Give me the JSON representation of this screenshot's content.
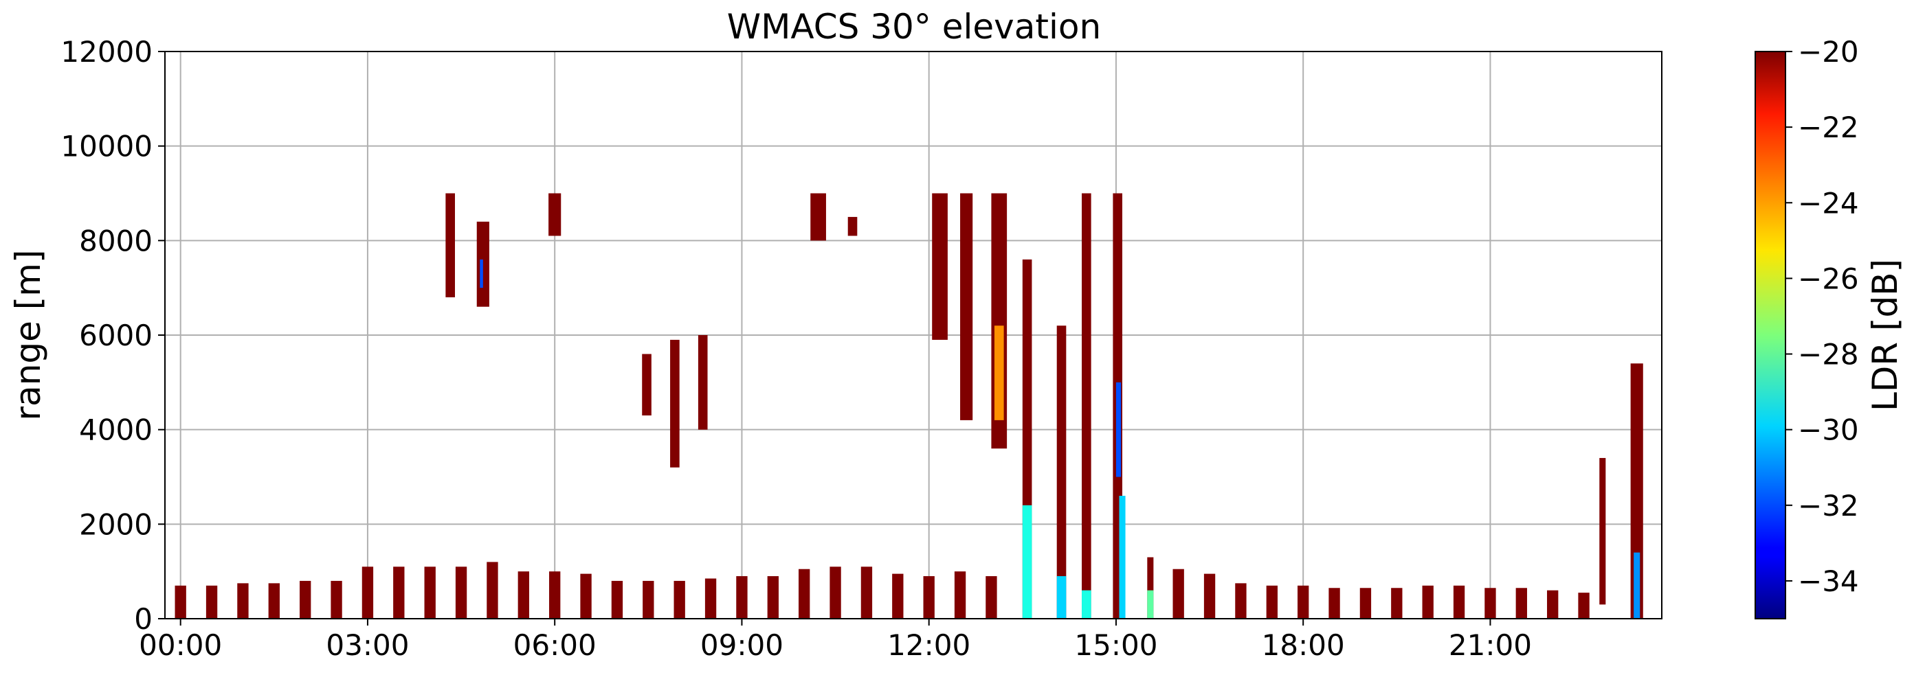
{
  "chart_data": {
    "type": "heatmap",
    "title": "WMACS 30° elevation",
    "xlabel": "",
    "ylabel": "range [m]",
    "x_ticks": [
      "00:00",
      "03:00",
      "06:00",
      "09:00",
      "12:00",
      "15:00",
      "18:00",
      "21:00"
    ],
    "x_tick_hours": [
      0,
      3,
      6,
      9,
      12,
      15,
      18,
      21
    ],
    "xlim_hours": [
      -0.25,
      23.75
    ],
    "ylim": [
      0,
      12000
    ],
    "y_ticks": [
      0,
      2000,
      4000,
      6000,
      8000,
      10000,
      12000
    ],
    "grid": true,
    "colorbar": {
      "label": "LDR [dB]",
      "range": [
        -35,
        -20
      ],
      "ticks": [
        -20,
        -22,
        -24,
        -26,
        -28,
        -30,
        -32,
        -34
      ],
      "tick_labels": [
        "−20",
        "−22",
        "−24",
        "−26",
        "−28",
        "−30",
        "−32",
        "−34"
      ],
      "colormap": "jet"
    },
    "boundary_layer_stripes": {
      "value_db": -20,
      "hours": [
        0.0,
        0.5,
        1.0,
        1.5,
        2.0,
        2.5,
        3.0,
        3.5,
        4.0,
        4.5,
        5.0,
        5.5,
        6.0,
        6.5,
        7.0,
        7.5,
        8.0,
        8.5,
        9.0,
        9.5,
        10.0,
        10.5,
        11.0,
        11.5,
        12.0,
        12.5,
        13.0,
        16.0,
        16.5,
        17.0,
        17.5,
        18.0,
        18.5,
        19.0,
        19.5,
        20.0,
        20.5,
        21.0,
        21.5,
        22.0,
        22.5
      ],
      "tops_m": [
        700,
        700,
        750,
        750,
        800,
        800,
        1100,
        1100,
        1100,
        1100,
        1200,
        1000,
        1000,
        950,
        800,
        800,
        800,
        850,
        900,
        900,
        1050,
        1100,
        1100,
        950,
        900,
        1000,
        900,
        1050,
        950,
        750,
        700,
        700,
        650,
        650,
        650,
        700,
        700,
        650,
        650,
        600,
        550
      ]
    },
    "cloud_features": [
      {
        "h_start": 4.25,
        "h_end": 4.4,
        "r_bottom": 6800,
        "r_top": 9000,
        "value_db": -20
      },
      {
        "h_start": 4.75,
        "h_end": 4.95,
        "r_bottom": 6600,
        "r_top": 8400,
        "value_db": -20
      },
      {
        "h_start": 4.8,
        "h_end": 4.85,
        "r_bottom": 7000,
        "r_top": 7600,
        "value_db": -32
      },
      {
        "h_start": 5.9,
        "h_end": 6.1,
        "r_bottom": 8100,
        "r_top": 9000,
        "value_db": -20
      },
      {
        "h_start": 7.4,
        "h_end": 7.55,
        "r_bottom": 4300,
        "r_top": 5600,
        "value_db": -20
      },
      {
        "h_start": 7.85,
        "h_end": 8.0,
        "r_bottom": 3200,
        "r_top": 5900,
        "value_db": -20
      },
      {
        "h_start": 8.3,
        "h_end": 8.45,
        "r_bottom": 4000,
        "r_top": 6000,
        "value_db": -20
      },
      {
        "h_start": 10.1,
        "h_end": 10.35,
        "r_bottom": 8000,
        "r_top": 9000,
        "value_db": -20
      },
      {
        "h_start": 10.7,
        "h_end": 10.85,
        "r_bottom": 8100,
        "r_top": 8500,
        "value_db": -20
      },
      {
        "h_start": 12.05,
        "h_end": 12.3,
        "r_bottom": 5900,
        "r_top": 9000,
        "value_db": -20
      },
      {
        "h_start": 12.5,
        "h_end": 12.7,
        "r_bottom": 4200,
        "r_top": 9000,
        "value_db": -20
      },
      {
        "h_start": 13.0,
        "h_end": 13.25,
        "r_bottom": 3600,
        "r_top": 9000,
        "value_db": -20
      },
      {
        "h_start": 13.05,
        "h_end": 13.2,
        "r_bottom": 4200,
        "r_top": 6200,
        "value_db": -24
      },
      {
        "h_start": 13.5,
        "h_end": 13.65,
        "r_bottom": 0,
        "r_top": 7600,
        "value_db": -20
      },
      {
        "h_start": 13.5,
        "h_end": 13.65,
        "r_bottom": 0,
        "r_top": 2400,
        "value_db": -29
      },
      {
        "h_start": 14.05,
        "h_end": 14.2,
        "r_bottom": 0,
        "r_top": 6200,
        "value_db": -20
      },
      {
        "h_start": 14.05,
        "h_end": 14.2,
        "r_bottom": 0,
        "r_top": 900,
        "value_db": -30
      },
      {
        "h_start": 14.45,
        "h_end": 14.6,
        "r_bottom": 0,
        "r_top": 9000,
        "value_db": -20
      },
      {
        "h_start": 14.45,
        "h_end": 14.6,
        "r_bottom": 0,
        "r_top": 600,
        "value_db": -29
      },
      {
        "h_start": 14.95,
        "h_end": 15.1,
        "r_bottom": 0,
        "r_top": 9000,
        "value_db": -20
      },
      {
        "h_start": 15.0,
        "h_end": 15.08,
        "r_bottom": 3000,
        "r_top": 5000,
        "value_db": -32
      },
      {
        "h_start": 15.05,
        "h_end": 15.15,
        "r_bottom": 0,
        "r_top": 2600,
        "value_db": -30
      },
      {
        "h_start": 15.5,
        "h_end": 15.6,
        "r_bottom": 0,
        "r_top": 1300,
        "value_db": -20
      },
      {
        "h_start": 15.5,
        "h_end": 15.6,
        "r_bottom": 0,
        "r_top": 600,
        "value_db": -28
      },
      {
        "h_start": 22.75,
        "h_end": 22.85,
        "r_bottom": 300,
        "r_top": 3400,
        "value_db": -20
      },
      {
        "h_start": 23.25,
        "h_end": 23.45,
        "r_bottom": 0,
        "r_top": 5400,
        "value_db": -20
      },
      {
        "h_start": 23.3,
        "h_end": 23.4,
        "r_bottom": 0,
        "r_top": 1400,
        "value_db": -31
      }
    ]
  }
}
